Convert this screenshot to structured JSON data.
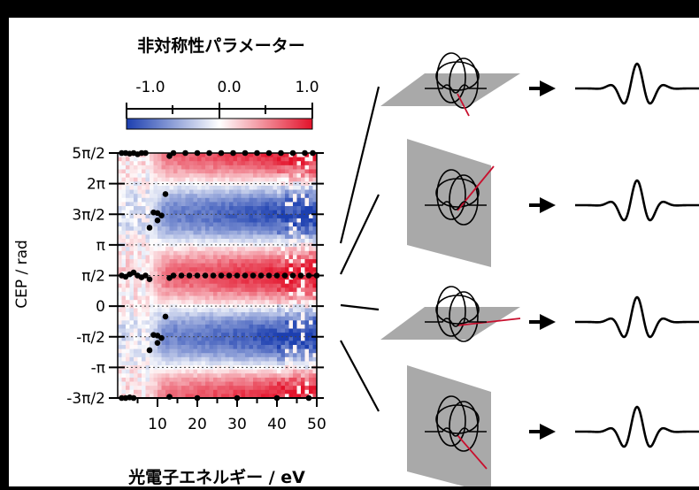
{
  "chart_data": {
    "type": "heatmap",
    "title": "",
    "colorbar": {
      "label": "非対称性パラメーター",
      "ticks": [
        "-1.0",
        "0.0",
        "1.0"
      ],
      "range": [
        -1.0,
        1.0
      ],
      "colors": {
        "negative": "#1c3fb0",
        "zero": "#ffffff",
        "positive": "#e3122a"
      }
    },
    "xlabel": "光電子エネルギー / eV",
    "ylabel": "CEP / rad",
    "xlim": [
      0,
      50
    ],
    "ylim": [
      -1.5,
      2.5
    ],
    "y_unit": "π",
    "x_ticks": [
      10,
      20,
      30,
      40,
      50
    ],
    "x_tick_labels": [
      "10",
      "20",
      "30",
      "40",
      "50"
    ],
    "y_ticks": [
      2.5,
      2,
      1.5,
      1,
      0.5,
      0,
      -0.5,
      -1,
      -1.5
    ],
    "y_tick_labels": [
      "5π/2",
      "2π",
      "3π/2",
      "π",
      "π/2",
      "0",
      "-π/2",
      "-π",
      "-3π/2"
    ],
    "dotted_gridlines_y": [
      2,
      1.5,
      1,
      0.5,
      0,
      -0.5,
      -1
    ],
    "asymmetry_model": {
      "description_phase_unit": "π",
      "positive_band_centers": [
        2.5,
        0.5,
        -1.5
      ],
      "negative_band_centers": [
        1.5,
        -0.5
      ],
      "onset_energy": 10
    },
    "series": [
      {
        "name": "",
        "points": [
          [
            1,
            2.5
          ],
          [
            2,
            2.5
          ],
          [
            3,
            2.49
          ],
          [
            4,
            2.5
          ],
          [
            5,
            2.48
          ],
          [
            6,
            2.5
          ],
          [
            7,
            2.5
          ],
          [
            13,
            2.45
          ],
          [
            14,
            2.5
          ],
          [
            17,
            2.5
          ],
          [
            20,
            2.5
          ],
          [
            23,
            2.5
          ],
          [
            26,
            2.5
          ],
          [
            29,
            2.5
          ],
          [
            32,
            2.5
          ],
          [
            35,
            2.5
          ],
          [
            38,
            2.5
          ],
          [
            41,
            2.5
          ],
          [
            44,
            2.5
          ],
          [
            47,
            2.5
          ],
          [
            49,
            2.5
          ],
          [
            12,
            1.83
          ],
          [
            9,
            1.53
          ],
          [
            10,
            1.52
          ],
          [
            11,
            1.48
          ],
          [
            10,
            1.4
          ],
          [
            8,
            1.28
          ],
          [
            1,
            0.5
          ],
          [
            2,
            0.48
          ],
          [
            3,
            0.52
          ],
          [
            4,
            0.55
          ],
          [
            5,
            0.5
          ],
          [
            6,
            0.47
          ],
          [
            7,
            0.5
          ],
          [
            8,
            0.44
          ],
          [
            13,
            0.46
          ],
          [
            14,
            0.5
          ],
          [
            16,
            0.5
          ],
          [
            18,
            0.5
          ],
          [
            20,
            0.5
          ],
          [
            22,
            0.5
          ],
          [
            24,
            0.5
          ],
          [
            26,
            0.5
          ],
          [
            28,
            0.5
          ],
          [
            30,
            0.5
          ],
          [
            32,
            0.5
          ],
          [
            34,
            0.5
          ],
          [
            36,
            0.5
          ],
          [
            38,
            0.5
          ],
          [
            40,
            0.5
          ],
          [
            42,
            0.5
          ],
          [
            44,
            0.5
          ],
          [
            46,
            0.5
          ],
          [
            48,
            0.5
          ],
          [
            50,
            0.5
          ],
          [
            12,
            -0.17
          ],
          [
            9,
            -0.47
          ],
          [
            10,
            -0.48
          ],
          [
            11,
            -0.52
          ],
          [
            10,
            -0.6
          ],
          [
            8,
            -0.72
          ],
          [
            1,
            -1.5
          ],
          [
            2,
            -1.5
          ],
          [
            3,
            -1.49
          ],
          [
            4,
            -1.5
          ],
          [
            13,
            -1.48
          ],
          [
            20,
            -1.5
          ],
          [
            30,
            -1.5
          ],
          [
            40,
            -1.5
          ],
          [
            48,
            -1.5
          ]
        ]
      }
    ]
  }
}
